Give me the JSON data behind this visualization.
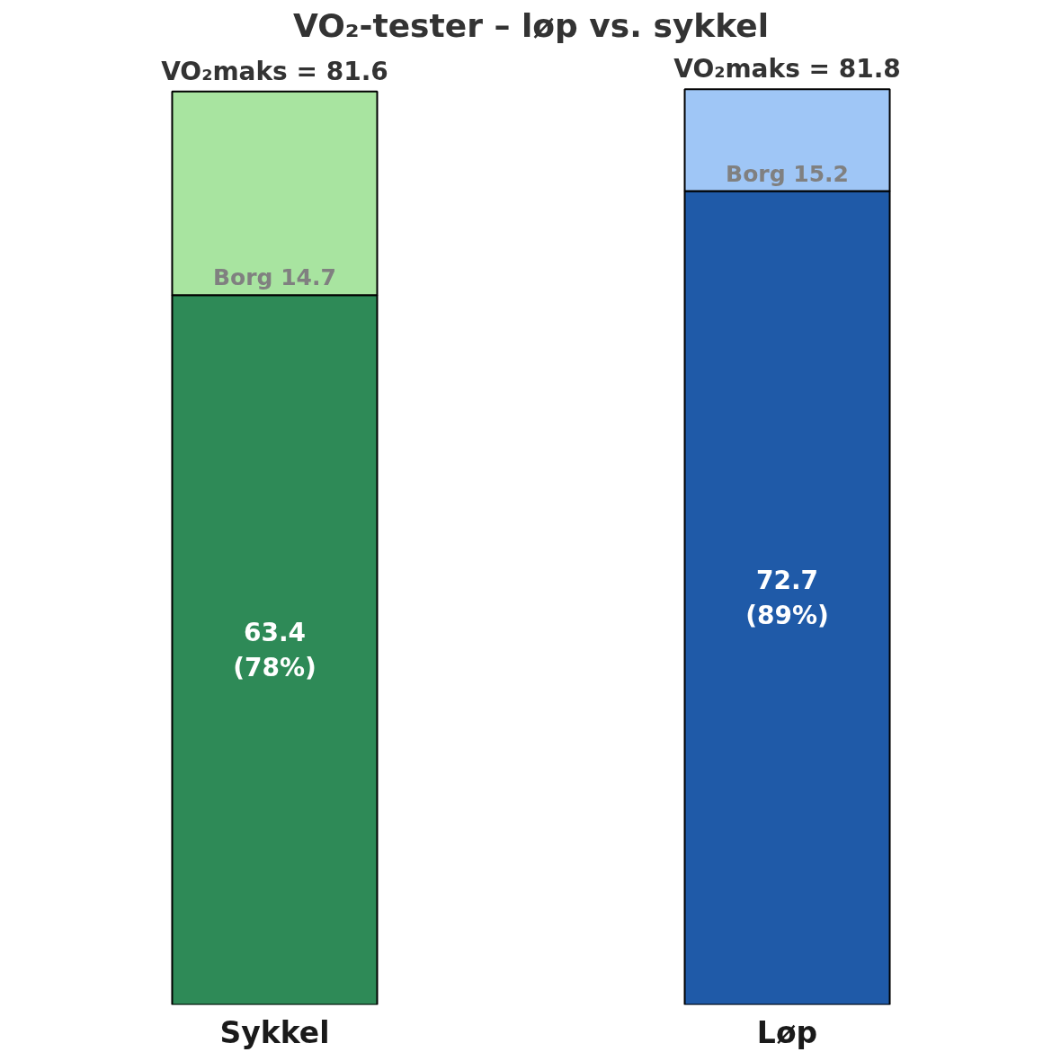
{
  "chart_data": {
    "type": "bar",
    "title": "VO₂-tester – løp vs. sykkel",
    "categories": [
      "Sykkel",
      "Løp"
    ],
    "stacked": true,
    "series": [
      {
        "colors": [
          "#2e8a57",
          "#1f5aa8"
        ],
        "values": [
          63.4,
          72.7
        ],
        "value_labels": [
          "63.4\n(78%)",
          "72.7\n(89%)"
        ]
      },
      {
        "colors": [
          "#a8e4a0",
          "#9fc6f6"
        ],
        "values": [
          18.2,
          9.1
        ]
      }
    ],
    "totals": [
      "VO₂maks = 81.6",
      "VO₂maks = 81.8"
    ],
    "annotations": [
      {
        "text": "Borg 14.7",
        "x": "Sykkel",
        "y": 63.4
      },
      {
        "text": "Borg 15.2",
        "x": "Løp",
        "y": 72.7
      }
    ],
    "grid": false
  }
}
